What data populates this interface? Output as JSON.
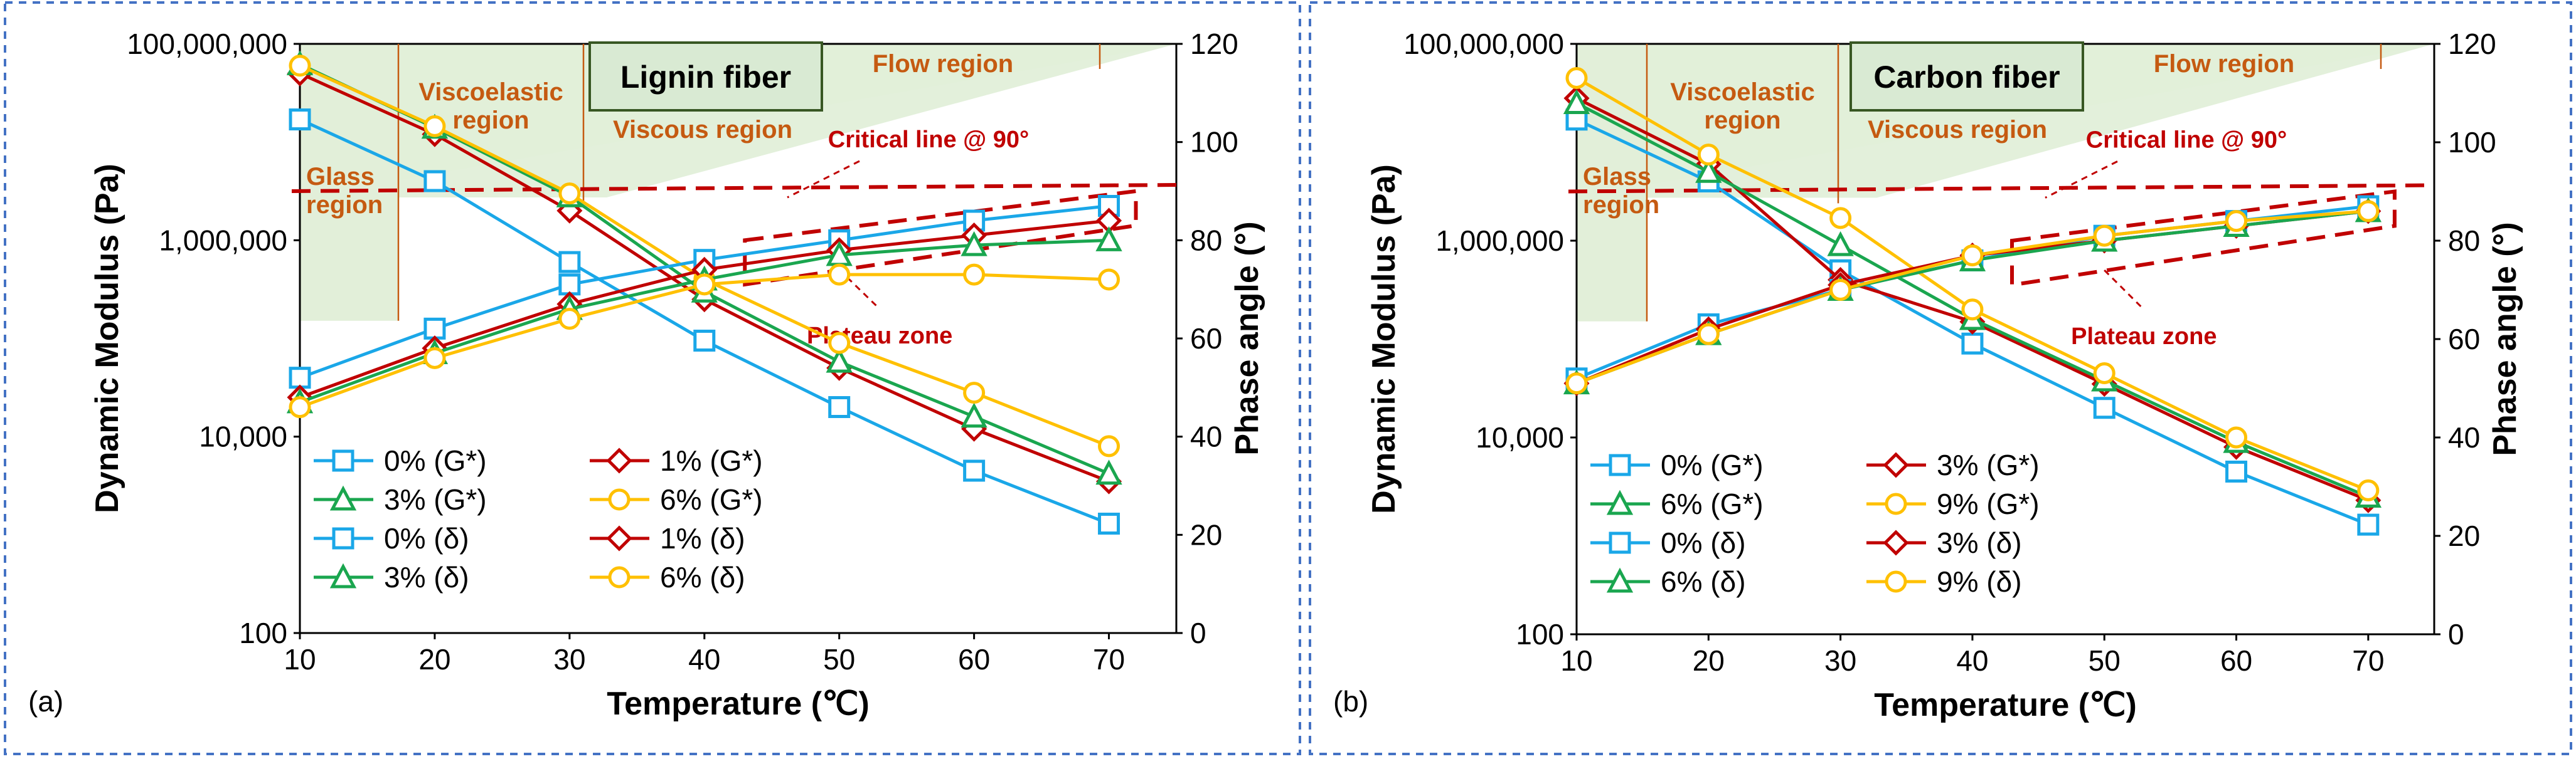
{
  "chart_data": [
    {
      "type": "line",
      "panel_label": "(a)",
      "fiber_label": "Lignin fiber",
      "xlabel": "Temperature (℃)",
      "ylabel_left": "Dynamic Modulus (Pa)",
      "ylabel_right": "Phase angle (°)",
      "x": [
        10,
        20,
        30,
        40,
        50,
        60,
        70
      ],
      "xlim": [
        10,
        75
      ],
      "ylim_left": [
        100,
        100000000
      ],
      "yscale_left": "log",
      "ylim_right": [
        0,
        120
      ],
      "x_ticks": [
        "10",
        "20",
        "30",
        "40",
        "50",
        "60",
        "70"
      ],
      "y_left_ticks": [
        "100",
        "10,000",
        "1,000,000",
        "100,000,000"
      ],
      "y_right_ticks": [
        "0",
        "20",
        "40",
        "60",
        "80",
        "100",
        "120"
      ],
      "region_labels": {
        "glass": "Glass region",
        "viscoelastic": "Viscoelastic region",
        "viscous": "Viscous region",
        "flow": "Flow region"
      },
      "critical_line_label": "Critical line @ 90°",
      "critical_line_value": 90,
      "plateau_label": "Plateau zone",
      "legend": [
        "0% (G*)",
        "1% (G*)",
        "3% (G*)",
        "6% (G*)",
        "0% (δ)",
        "1% (δ)",
        "3% (δ)",
        "6% (δ)"
      ],
      "legend_placement": "bottom-left",
      "series": [
        {
          "name": "0% (G*)",
          "axis": "left",
          "color": "#1aa7e8",
          "marker": "square",
          "values": [
            17000000,
            4000000,
            600000,
            95000,
            20000,
            4500,
            1300
          ]
        },
        {
          "name": "1% (G*)",
          "axis": "left",
          "color": "#c00000",
          "marker": "diamond",
          "values": [
            50000000,
            12000000,
            2000000,
            250000,
            50000,
            12000,
            3500
          ]
        },
        {
          "name": "3% (G*)",
          "axis": "left",
          "color": "#1aa64f",
          "marker": "triangle",
          "values": [
            62000000,
            14000000,
            2800000,
            300000,
            58000,
            16000,
            4200
          ]
        },
        {
          "name": "6% (G*)",
          "axis": "left",
          "color": "#ffc000",
          "marker": "circle",
          "values": [
            60000000,
            14500000,
            3000000,
            400000,
            90000,
            28000,
            8000
          ]
        },
        {
          "name": "0% (δ)",
          "axis": "right",
          "color": "#1aa7e8",
          "marker": "square",
          "values": [
            52,
            62,
            71,
            76,
            80,
            84,
            87
          ]
        },
        {
          "name": "1% (δ)",
          "axis": "right",
          "color": "#c00000",
          "marker": "diamond",
          "values": [
            48,
            58,
            67,
            74,
            78,
            81,
            84
          ]
        },
        {
          "name": "3% (δ)",
          "axis": "right",
          "color": "#1aa64f",
          "marker": "triangle",
          "values": [
            47,
            57,
            66,
            72,
            77,
            79,
            80
          ]
        },
        {
          "name": "6% (δ)",
          "axis": "right",
          "color": "#ffc000",
          "marker": "circle",
          "values": [
            46,
            56,
            64,
            71,
            73,
            73,
            72
          ]
        }
      ]
    },
    {
      "type": "line",
      "panel_label": "(b)",
      "fiber_label": "Carbon fiber",
      "xlabel": "Temperature (℃)",
      "ylabel_left": "Dynamic Modulus (Pa)",
      "ylabel_right": "Phase angle (°)",
      "x": [
        10,
        20,
        30,
        40,
        50,
        60,
        70
      ],
      "xlim": [
        10,
        75
      ],
      "ylim_left": [
        100,
        100000000
      ],
      "yscale_left": "log",
      "ylim_right": [
        0,
        120
      ],
      "x_ticks": [
        "10",
        "20",
        "30",
        "40",
        "50",
        "60",
        "70"
      ],
      "y_left_ticks": [
        "100",
        "10,000",
        "1,000,000",
        "100,000,000"
      ],
      "y_right_ticks": [
        "0",
        "20",
        "40",
        "60",
        "80",
        "100",
        "120"
      ],
      "region_labels": {
        "glass": "Glass region",
        "viscoelastic": "Viscoelastic region",
        "viscous": "Viscous region",
        "flow": "Flow region"
      },
      "critical_line_label": "Critical line @ 90°",
      "critical_line_value": 90,
      "plateau_label": "Plateau zone",
      "legend": [
        "0% (G*)",
        "3% (G*)",
        "6% (G*)",
        "9% (G*)",
        "0% (δ)",
        "3% (δ)",
        "6% (δ)",
        "9% (δ)"
      ],
      "legend_placement": "bottom-left",
      "series": [
        {
          "name": "0% (G*)",
          "axis": "left",
          "color": "#1aa7e8",
          "marker": "square",
          "values": [
            17000000,
            4000000,
            500000,
            90000,
            20000,
            4500,
            1300
          ]
        },
        {
          "name": "3% (G*)",
          "axis": "left",
          "color": "#c00000",
          "marker": "diamond",
          "values": [
            28000000,
            6000000,
            400000,
            150000,
            35000,
            8000,
            2300
          ]
        },
        {
          "name": "6% (G*)",
          "axis": "left",
          "color": "#1aa64f",
          "marker": "triangle",
          "values": [
            25000000,
            5000000,
            900000,
            160000,
            38000,
            9000,
            2500
          ]
        },
        {
          "name": "9% (G*)",
          "axis": "left",
          "color": "#ffc000",
          "marker": "circle",
          "values": [
            45000000,
            7500000,
            1700000,
            200000,
            45000,
            10000,
            2900
          ]
        },
        {
          "name": "0% (δ)",
          "axis": "right",
          "color": "#1aa7e8",
          "marker": "square",
          "values": [
            52,
            63,
            70,
            76,
            81,
            84,
            87
          ]
        },
        {
          "name": "3% (δ)",
          "axis": "right",
          "color": "#c00000",
          "marker": "diamond",
          "values": [
            51,
            62,
            71,
            77,
            80,
            83,
            86
          ]
        },
        {
          "name": "6% (δ)",
          "axis": "right",
          "color": "#1aa64f",
          "marker": "triangle",
          "values": [
            51,
            61,
            70,
            76,
            80,
            83,
            86
          ]
        },
        {
          "name": "9% (δ)",
          "axis": "right",
          "color": "#ffc000",
          "marker": "circle",
          "values": [
            51,
            61,
            70,
            77,
            81,
            84,
            86
          ]
        }
      ]
    }
  ]
}
